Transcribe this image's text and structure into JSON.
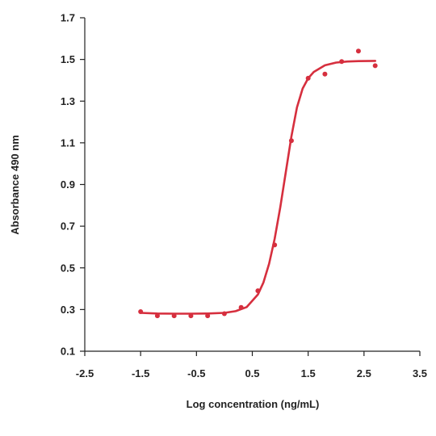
{
  "chart_data": {
    "type": "scatter",
    "title": "",
    "xlabel": "Log concentration (ng/mL)",
    "ylabel": "Absorbance 490 nm",
    "xlim": [
      -2.5,
      3.5
    ],
    "ylim": [
      0.1,
      1.7
    ],
    "xticks": [
      -2.5,
      -1.5,
      -0.5,
      0.5,
      1.5,
      2.5,
      3.5
    ],
    "xtick_labels": [
      "-2.5",
      "-1.5",
      "-0.5",
      "0.5",
      "1.5",
      "2.5",
      "3.5"
    ],
    "yticks": [
      0.1,
      0.3,
      0.5,
      0.7,
      0.9,
      1.1,
      1.3,
      1.5,
      1.7
    ],
    "ytick_labels": [
      "0.1",
      "0.3",
      "0.5",
      "0.7",
      "0.9",
      "1.1",
      "1.3",
      "1.5",
      "1.7"
    ],
    "grid": false,
    "color": "#d62f3e",
    "series": [
      {
        "type": "scatter",
        "x": [
          -1.5,
          -1.2,
          -0.9,
          -0.6,
          -0.3,
          0.0,
          0.3,
          0.6,
          0.9,
          1.2,
          1.5,
          1.8,
          2.1,
          2.4,
          2.7
        ],
        "y": [
          0.29,
          0.27,
          0.27,
          0.27,
          0.27,
          0.28,
          0.31,
          0.39,
          0.61,
          1.11,
          1.41,
          1.43,
          1.49,
          1.54,
          1.47
        ]
      },
      {
        "type": "line",
        "x": [
          -1.5,
          -1.2,
          -0.9,
          -0.6,
          -0.3,
          0.0,
          0.2,
          0.4,
          0.6,
          0.7,
          0.8,
          0.9,
          1.0,
          1.1,
          1.2,
          1.3,
          1.4,
          1.5,
          1.6,
          1.8,
          2.0,
          2.2,
          2.4,
          2.7
        ],
        "y": [
          0.284,
          0.281,
          0.28,
          0.28,
          0.281,
          0.284,
          0.292,
          0.312,
          0.372,
          0.43,
          0.52,
          0.64,
          0.79,
          0.96,
          1.13,
          1.27,
          1.36,
          1.41,
          1.44,
          1.472,
          1.485,
          1.49,
          1.492,
          1.493
        ]
      }
    ]
  }
}
